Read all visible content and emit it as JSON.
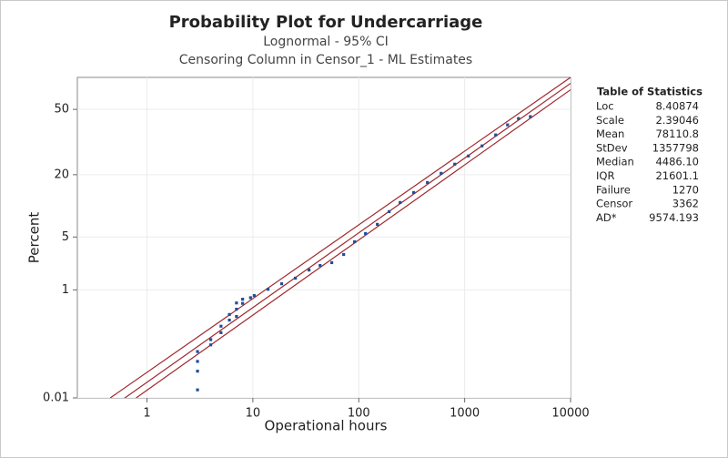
{
  "chart_data": {
    "type": "probability",
    "title": "Probability Plot for Undercarriage",
    "subtitle": [
      "Lognormal - 95% CI",
      "Censoring Column in Censor_1 - ML Estimates"
    ],
    "xlabel": "Operational hours",
    "ylabel": "Percent",
    "xscale": "log",
    "yscale": "normal-probability",
    "xlim": [
      0.22,
      10000
    ],
    "ylim": [
      0.01,
      66
    ],
    "xticks": [
      1,
      10,
      100,
      1000,
      10000
    ],
    "yticks": [
      0.01,
      1,
      5,
      20,
      50
    ],
    "grid": true,
    "points": {
      "color": "#1f4e9c",
      "x": [
        3,
        3,
        3,
        3,
        4,
        4,
        5,
        5,
        6,
        6,
        7,
        7,
        7,
        8,
        8,
        9.5,
        10.3,
        13.9,
        18.7,
        25.2,
        33.9,
        43.1,
        55.6,
        72,
        91.3,
        115.8,
        149.8,
        193.6,
        245.6,
        330,
        445,
        599,
        806,
        1084,
        1459,
        1963,
        2541,
        3222,
        4169
      ],
      "values": [
        0.015,
        0.037,
        0.058,
        0.09,
        0.12,
        0.15,
        0.2,
        0.26,
        0.33,
        0.41,
        0.38,
        0.5,
        0.63,
        0.62,
        0.72,
        0.76,
        0.82,
        1.02,
        1.23,
        1.48,
        1.92,
        2.21,
        2.41,
        3.07,
        4.4,
        5.48,
        6.92,
        9.38,
        11.5,
        14.2,
        17.3,
        20.5,
        24,
        27.4,
        31.9,
        37.1,
        42.1,
        45.3,
        46.3
      ]
    },
    "fit": {
      "color": "#a0282d"
    },
    "ci_bounds": [
      {
        "x": [
          0.45,
          10000
        ],
        "values": [
          0.01,
          66
        ]
      },
      {
        "x": [
          0.79,
          10000
        ],
        "values": [
          0.01,
          60
        ]
      }
    ],
    "table": {
      "title": "Table of Statistics",
      "rows": [
        {
          "name": "Loc",
          "value": 8.40874
        },
        {
          "name": "Scale",
          "value": 2.39046
        },
        {
          "name": "Mean",
          "value": 78110.8
        },
        {
          "name": "StDev",
          "value": 1357798
        },
        {
          "name": "Median",
          "value": {
            "value": 4486.1,
            "label": "4486.10"
          }
        },
        {
          "name": "IQR",
          "value": 21601.1
        },
        {
          "name": "Failure",
          "value": 1270
        },
        {
          "name": "Censor",
          "value": 3362
        },
        {
          "name": "AD*",
          "value": 9574.193
        }
      ]
    }
  }
}
